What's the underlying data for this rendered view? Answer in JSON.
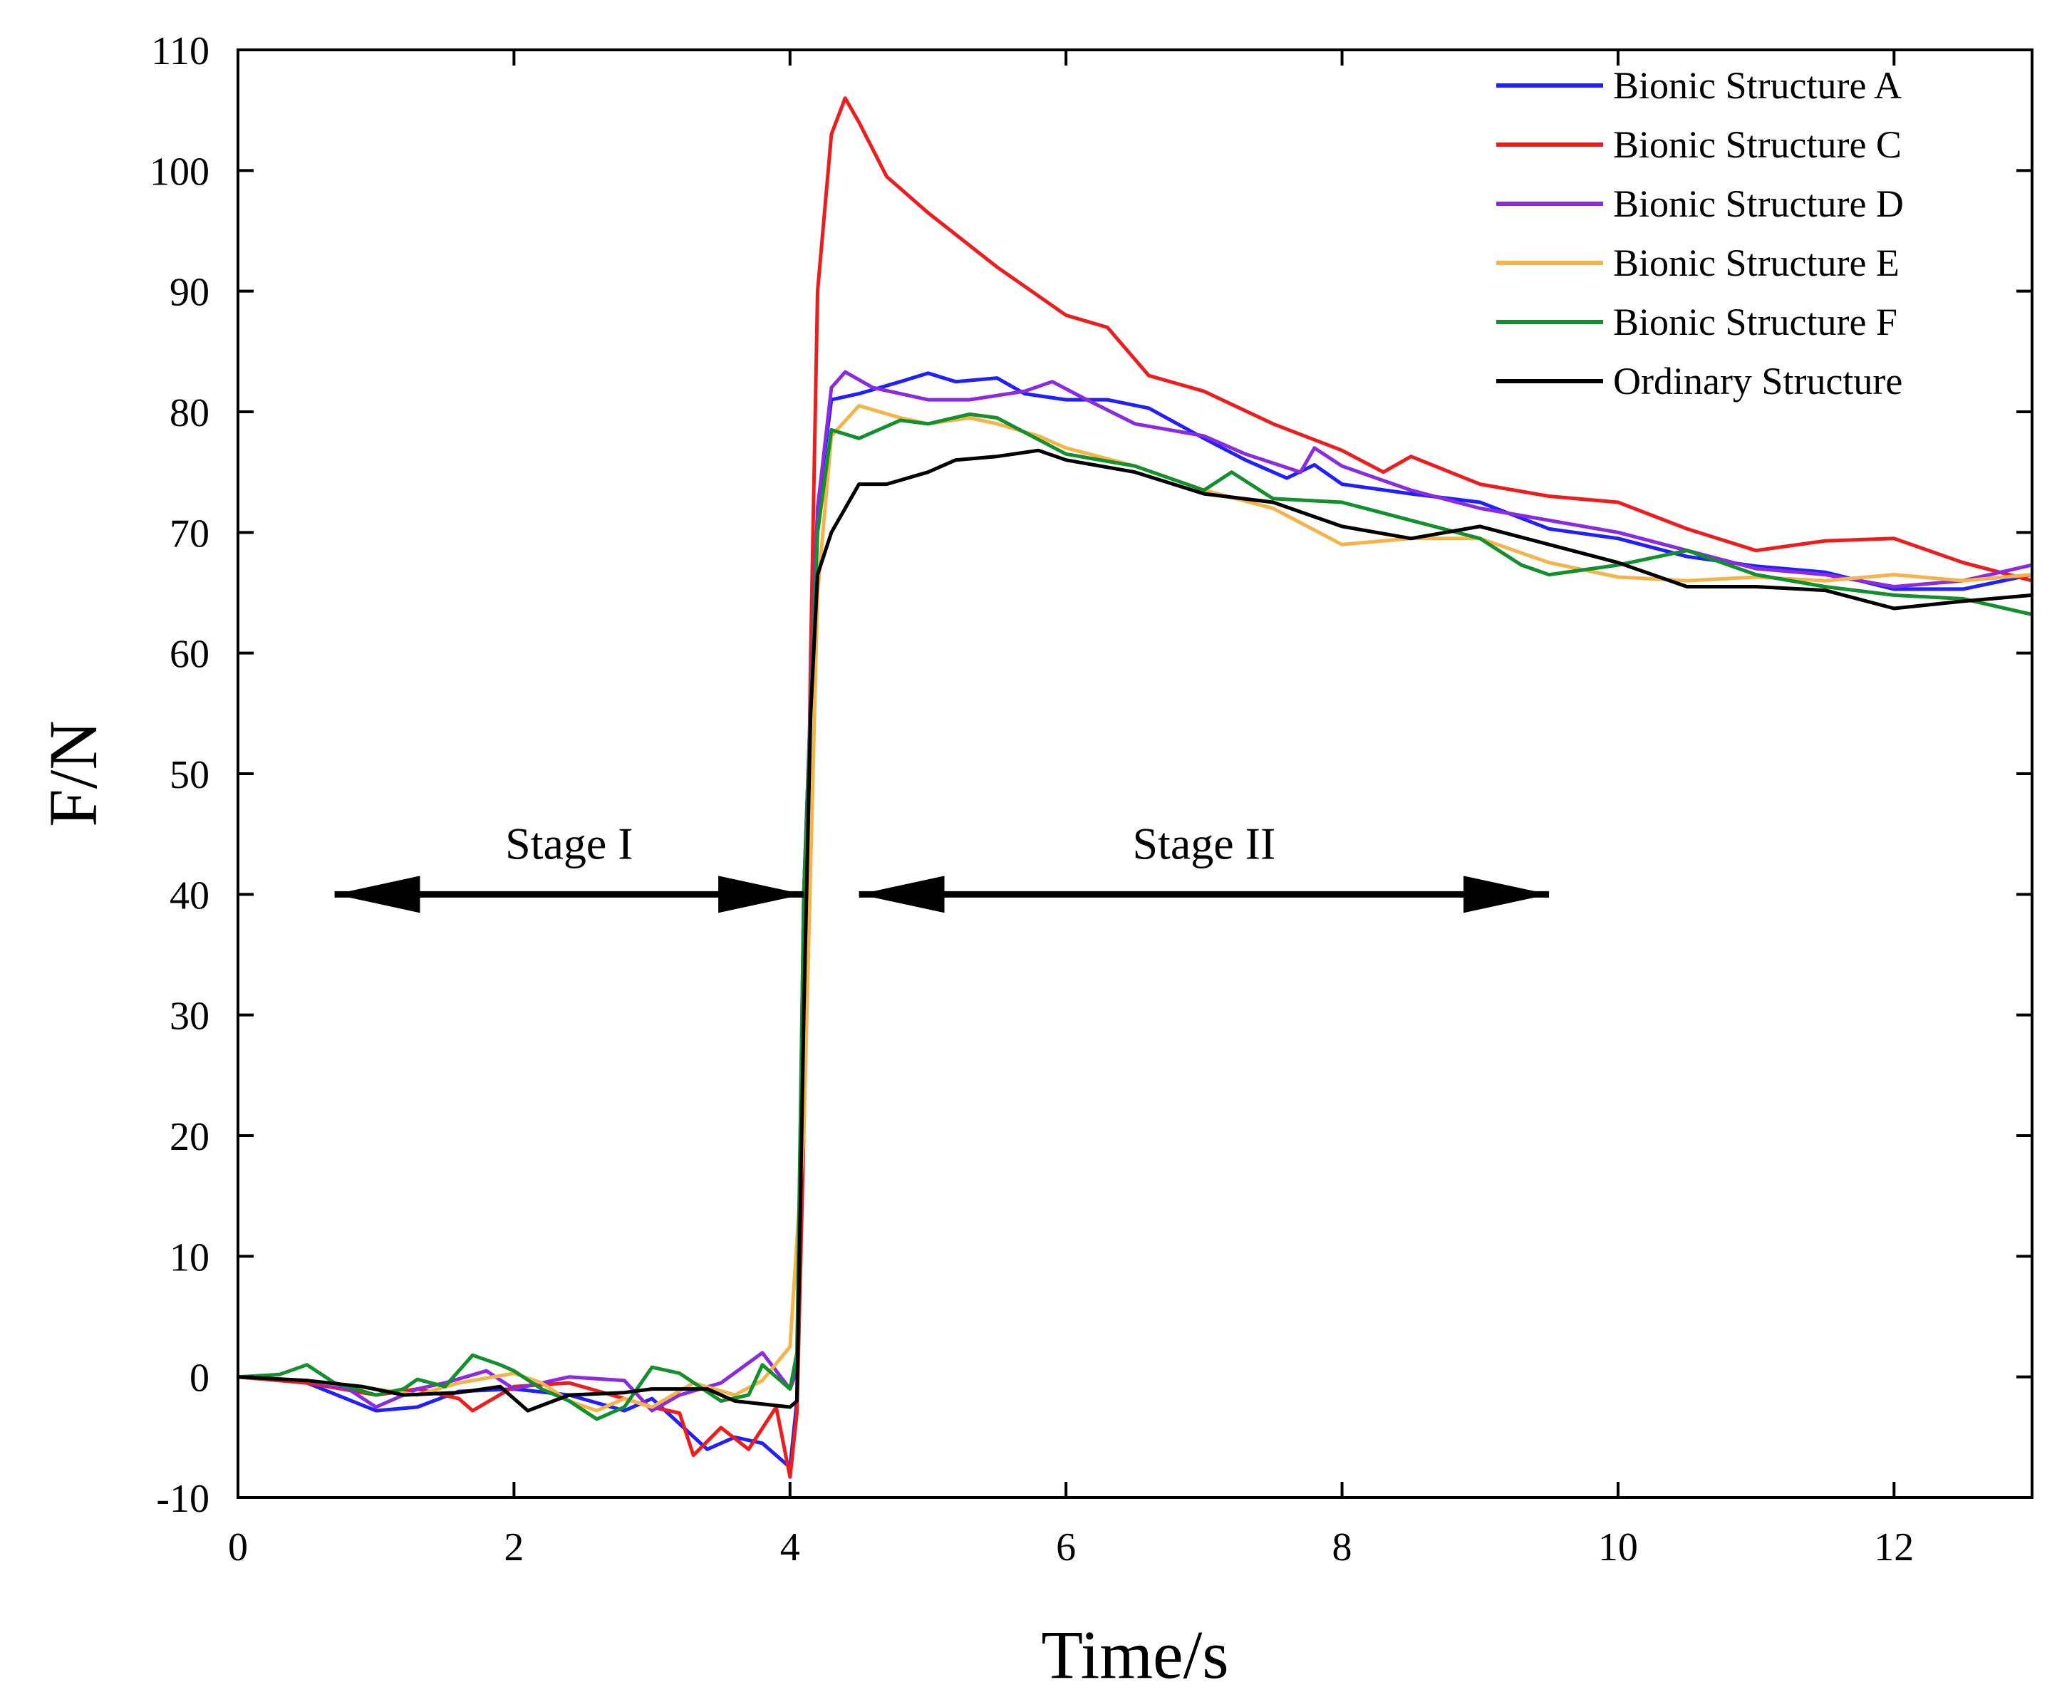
{
  "chart_data": {
    "type": "line",
    "title": "",
    "xlabel": "Time/s",
    "ylabel": "F/N",
    "xlim": [
      0,
      13
    ],
    "ylim": [
      -10,
      110
    ],
    "xticks": [
      "0",
      "2",
      "4",
      "6",
      "8",
      "10",
      "12"
    ],
    "yticks": [
      "-10",
      "0",
      "10",
      "20",
      "30",
      "40",
      "50",
      "60",
      "70",
      "80",
      "90",
      "100",
      "110"
    ],
    "grid": false,
    "legend_position": "top-right",
    "annotations": [
      {
        "text": "Stage I",
        "arrow_from": 0.7,
        "arrow_to": 4.1,
        "y": 40
      },
      {
        "text": "Stage II",
        "arrow_from": 4.5,
        "arrow_to": 9.5,
        "y": 40
      }
    ],
    "series": [
      {
        "name": "Bionic Structure A",
        "color": "#1f1fff",
        "points": [
          [
            0,
            0
          ],
          [
            0.5,
            -0.5
          ],
          [
            1.0,
            -2.8
          ],
          [
            1.3,
            -2.5
          ],
          [
            1.6,
            -1.2
          ],
          [
            2.0,
            -1.0
          ],
          [
            2.4,
            -1.5
          ],
          [
            2.8,
            -2.8
          ],
          [
            3.0,
            -1.8
          ],
          [
            3.4,
            -6.0
          ],
          [
            3.6,
            -5.0
          ],
          [
            3.8,
            -5.5
          ],
          [
            4.0,
            -7.5
          ],
          [
            4.05,
            -2
          ],
          [
            4.1,
            40
          ],
          [
            4.2,
            72
          ],
          [
            4.3,
            81
          ],
          [
            4.5,
            81.5
          ],
          [
            4.8,
            82.5
          ],
          [
            5.0,
            83.2
          ],
          [
            5.2,
            82.5
          ],
          [
            5.5,
            82.8
          ],
          [
            5.7,
            81.5
          ],
          [
            6.0,
            81.0
          ],
          [
            6.3,
            81.0
          ],
          [
            6.6,
            80.3
          ],
          [
            7.0,
            77.8
          ],
          [
            7.3,
            76.0
          ],
          [
            7.6,
            74.5
          ],
          [
            7.8,
            75.6
          ],
          [
            8.0,
            74.0
          ],
          [
            8.5,
            73.2
          ],
          [
            9.0,
            72.5
          ],
          [
            9.5,
            70.3
          ],
          [
            10.0,
            69.5
          ],
          [
            10.5,
            68.0
          ],
          [
            11.0,
            67.2
          ],
          [
            11.5,
            66.7
          ],
          [
            12.0,
            65.3
          ],
          [
            12.5,
            65.3
          ],
          [
            13.0,
            66.5
          ]
        ]
      },
      {
        "name": "Bionic Structure C",
        "color": "#ee1c1c",
        "points": [
          [
            0,
            0
          ],
          [
            0.5,
            -0.5
          ],
          [
            1.0,
            -1.5
          ],
          [
            1.3,
            -1.0
          ],
          [
            1.6,
            -1.8
          ],
          [
            1.7,
            -2.8
          ],
          [
            2.0,
            -0.8
          ],
          [
            2.4,
            -0.5
          ],
          [
            2.8,
            -1.8
          ],
          [
            3.0,
            -2.5
          ],
          [
            3.2,
            -3.0
          ],
          [
            3.3,
            -6.5
          ],
          [
            3.5,
            -4.2
          ],
          [
            3.7,
            -6.0
          ],
          [
            3.9,
            -2.5
          ],
          [
            4.0,
            -8.3
          ],
          [
            4.05,
            -3
          ],
          [
            4.1,
            20
          ],
          [
            4.15,
            60
          ],
          [
            4.2,
            90
          ],
          [
            4.3,
            103
          ],
          [
            4.4,
            106
          ],
          [
            4.5,
            104
          ],
          [
            4.7,
            99.5
          ],
          [
            5.0,
            96.5
          ],
          [
            5.5,
            92
          ],
          [
            6.0,
            88
          ],
          [
            6.3,
            87
          ],
          [
            6.6,
            83
          ],
          [
            7.0,
            81.7
          ],
          [
            7.5,
            79
          ],
          [
            8.0,
            76.8
          ],
          [
            8.3,
            75
          ],
          [
            8.5,
            76.3
          ],
          [
            9.0,
            74
          ],
          [
            9.5,
            73
          ],
          [
            10.0,
            72.5
          ],
          [
            10.5,
            70.3
          ],
          [
            11.0,
            68.5
          ],
          [
            11.5,
            69.3
          ],
          [
            12.0,
            69.5
          ],
          [
            12.5,
            67.5
          ],
          [
            13.0,
            66
          ]
        ]
      },
      {
        "name": "Bionic Structure D",
        "color": "#8a2be2",
        "points": [
          [
            0,
            0
          ],
          [
            0.5,
            -0.3
          ],
          [
            0.8,
            -1.0
          ],
          [
            1.0,
            -2.5
          ],
          [
            1.3,
            -1.0
          ],
          [
            1.5,
            -0.5
          ],
          [
            1.8,
            0.5
          ],
          [
            2.0,
            -1.0
          ],
          [
            2.4,
            0
          ],
          [
            2.8,
            -0.3
          ],
          [
            3.0,
            -2.8
          ],
          [
            3.2,
            -1.5
          ],
          [
            3.5,
            -0.5
          ],
          [
            3.8,
            2.0
          ],
          [
            4.0,
            -1.0
          ],
          [
            4.05,
            0.5
          ],
          [
            4.1,
            40
          ],
          [
            4.2,
            72
          ],
          [
            4.3,
            82
          ],
          [
            4.4,
            83.3
          ],
          [
            4.6,
            82
          ],
          [
            5.0,
            81
          ],
          [
            5.3,
            81
          ],
          [
            5.7,
            81.7
          ],
          [
            5.9,
            82.5
          ],
          [
            6.1,
            81.3
          ],
          [
            6.5,
            79
          ],
          [
            7.0,
            78
          ],
          [
            7.3,
            76.5
          ],
          [
            7.7,
            75
          ],
          [
            7.8,
            77
          ],
          [
            8.0,
            75.5
          ],
          [
            8.5,
            73.5
          ],
          [
            9.0,
            72
          ],
          [
            9.5,
            71
          ],
          [
            10.0,
            70
          ],
          [
            10.5,
            68.5
          ],
          [
            11.0,
            67
          ],
          [
            11.5,
            66.5
          ],
          [
            12.0,
            65.5
          ],
          [
            12.5,
            66
          ],
          [
            13.0,
            67.3
          ]
        ]
      },
      {
        "name": "Bionic Structure E",
        "color": "#f5b449",
        "points": [
          [
            0,
            0
          ],
          [
            0.5,
            -0.3
          ],
          [
            1.0,
            -1.0
          ],
          [
            1.3,
            -1.5
          ],
          [
            1.6,
            -0.5
          ],
          [
            2.0,
            0.3
          ],
          [
            2.2,
            -0.5
          ],
          [
            2.4,
            -2.0
          ],
          [
            2.6,
            -2.8
          ],
          [
            2.8,
            -1.8
          ],
          [
            3.0,
            -2.5
          ],
          [
            3.3,
            -0.5
          ],
          [
            3.6,
            -1.5
          ],
          [
            3.8,
            -0.3
          ],
          [
            4.0,
            2.5
          ],
          [
            4.1,
            20
          ],
          [
            4.2,
            65
          ],
          [
            4.3,
            78
          ],
          [
            4.5,
            80.5
          ],
          [
            4.8,
            79.5
          ],
          [
            5.0,
            79
          ],
          [
            5.3,
            79.5
          ],
          [
            5.5,
            79
          ],
          [
            5.8,
            78
          ],
          [
            6.0,
            77
          ],
          [
            6.5,
            75.5
          ],
          [
            7.0,
            73.5
          ],
          [
            7.5,
            72
          ],
          [
            8.0,
            69
          ],
          [
            8.5,
            69.5
          ],
          [
            9.0,
            69.5
          ],
          [
            9.5,
            67.5
          ],
          [
            10.0,
            66.3
          ],
          [
            10.5,
            66
          ],
          [
            11.0,
            66.3
          ],
          [
            11.5,
            66
          ],
          [
            12.0,
            66.5
          ],
          [
            12.5,
            66
          ],
          [
            13.0,
            66.5
          ]
        ]
      },
      {
        "name": "Bionic Structure F",
        "color": "#12902c",
        "points": [
          [
            0,
            0
          ],
          [
            0.3,
            0.2
          ],
          [
            0.5,
            1.0
          ],
          [
            0.7,
            -0.5
          ],
          [
            1.0,
            -1.5
          ],
          [
            1.2,
            -1.0
          ],
          [
            1.3,
            -0.2
          ],
          [
            1.5,
            -0.8
          ],
          [
            1.7,
            1.8
          ],
          [
            1.9,
            1.0
          ],
          [
            2.0,
            0.5
          ],
          [
            2.2,
            -1.0
          ],
          [
            2.4,
            -2.0
          ],
          [
            2.6,
            -3.5
          ],
          [
            2.8,
            -2.5
          ],
          [
            3.0,
            0.8
          ],
          [
            3.2,
            0.3
          ],
          [
            3.5,
            -2.0
          ],
          [
            3.7,
            -1.5
          ],
          [
            3.8,
            1.0
          ],
          [
            4.0,
            -1.0
          ],
          [
            4.05,
            2
          ],
          [
            4.1,
            40
          ],
          [
            4.2,
            70
          ],
          [
            4.3,
            78.5
          ],
          [
            4.5,
            77.8
          ],
          [
            4.8,
            79.3
          ],
          [
            5.0,
            79
          ],
          [
            5.3,
            79.8
          ],
          [
            5.5,
            79.5
          ],
          [
            6.0,
            76.5
          ],
          [
            6.5,
            75.5
          ],
          [
            7.0,
            73.5
          ],
          [
            7.2,
            75
          ],
          [
            7.5,
            72.8
          ],
          [
            8.0,
            72.5
          ],
          [
            8.5,
            71
          ],
          [
            9.0,
            69.5
          ],
          [
            9.3,
            67.3
          ],
          [
            9.5,
            66.5
          ],
          [
            10.0,
            67.3
          ],
          [
            10.5,
            68.5
          ],
          [
            11.0,
            66.5
          ],
          [
            11.5,
            65.5
          ],
          [
            12.0,
            64.8
          ],
          [
            12.5,
            64.5
          ],
          [
            13.0,
            63.2
          ]
        ]
      },
      {
        "name": "Ordinary Structure",
        "color": "#000000",
        "points": [
          [
            0,
            0
          ],
          [
            0.5,
            -0.3
          ],
          [
            0.9,
            -0.8
          ],
          [
            1.2,
            -1.5
          ],
          [
            1.6,
            -1.3
          ],
          [
            1.9,
            -0.8
          ],
          [
            2.1,
            -2.8
          ],
          [
            2.4,
            -1.5
          ],
          [
            2.8,
            -1.3
          ],
          [
            3.0,
            -1.0
          ],
          [
            3.4,
            -1.0
          ],
          [
            3.6,
            -2.0
          ],
          [
            4.0,
            -2.5
          ],
          [
            4.05,
            -2
          ],
          [
            4.1,
            30
          ],
          [
            4.15,
            55
          ],
          [
            4.2,
            66.5
          ],
          [
            4.3,
            70
          ],
          [
            4.5,
            74
          ],
          [
            4.7,
            74
          ],
          [
            5.0,
            75
          ],
          [
            5.2,
            76
          ],
          [
            5.5,
            76.3
          ],
          [
            5.8,
            76.8
          ],
          [
            6.0,
            76
          ],
          [
            6.5,
            75
          ],
          [
            7.0,
            73.2
          ],
          [
            7.5,
            72.5
          ],
          [
            8.0,
            70.5
          ],
          [
            8.5,
            69.5
          ],
          [
            9.0,
            70.5
          ],
          [
            9.5,
            69
          ],
          [
            10.0,
            67.5
          ],
          [
            10.5,
            65.5
          ],
          [
            11.0,
            65.5
          ],
          [
            11.5,
            65.2
          ],
          [
            12.0,
            63.7
          ],
          [
            12.5,
            64.3
          ],
          [
            13.0,
            64.8
          ]
        ]
      }
    ]
  }
}
